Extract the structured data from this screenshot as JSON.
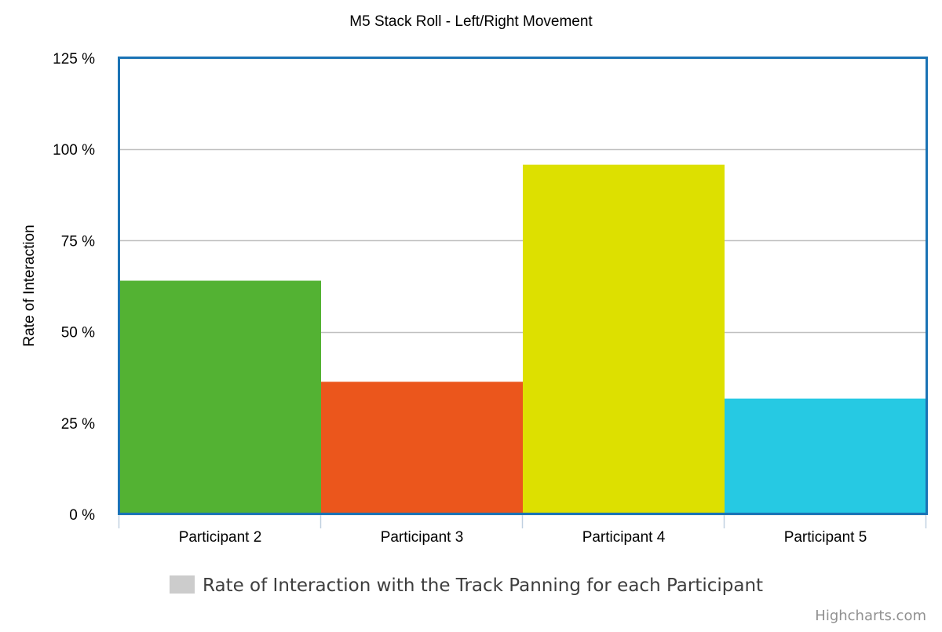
{
  "chart_data": {
    "type": "bar",
    "title": "M5 Stack Roll - Left/Right Movement",
    "subtitle": "",
    "ylabel": "Rate of Interaction",
    "xlabel": "",
    "categories": [
      "Participant 2",
      "Participant 3",
      "Participant 4",
      "Participant 5"
    ],
    "series": [
      {
        "name": "Rate of Interaction with the Track Panning for each Participant",
        "values": [
          64,
          36.3,
          95.8,
          31.7
        ],
        "colors": [
          "#53b233",
          "#eb561c",
          "#dde000",
          "#26c9e3"
        ]
      }
    ],
    "ylim": [
      0,
      125
    ],
    "yticks": [
      0,
      25,
      50,
      75,
      100,
      125
    ],
    "ytick_labels": [
      "0 %",
      "25 %",
      "50 %",
      "75 %",
      "100 %",
      "125 %"
    ],
    "grid": true,
    "legend_position": "bottom-center",
    "legend_symbol_color": "#cccccc",
    "plot_border_color": "#1a73b5"
  },
  "credits": "Highcharts.com"
}
